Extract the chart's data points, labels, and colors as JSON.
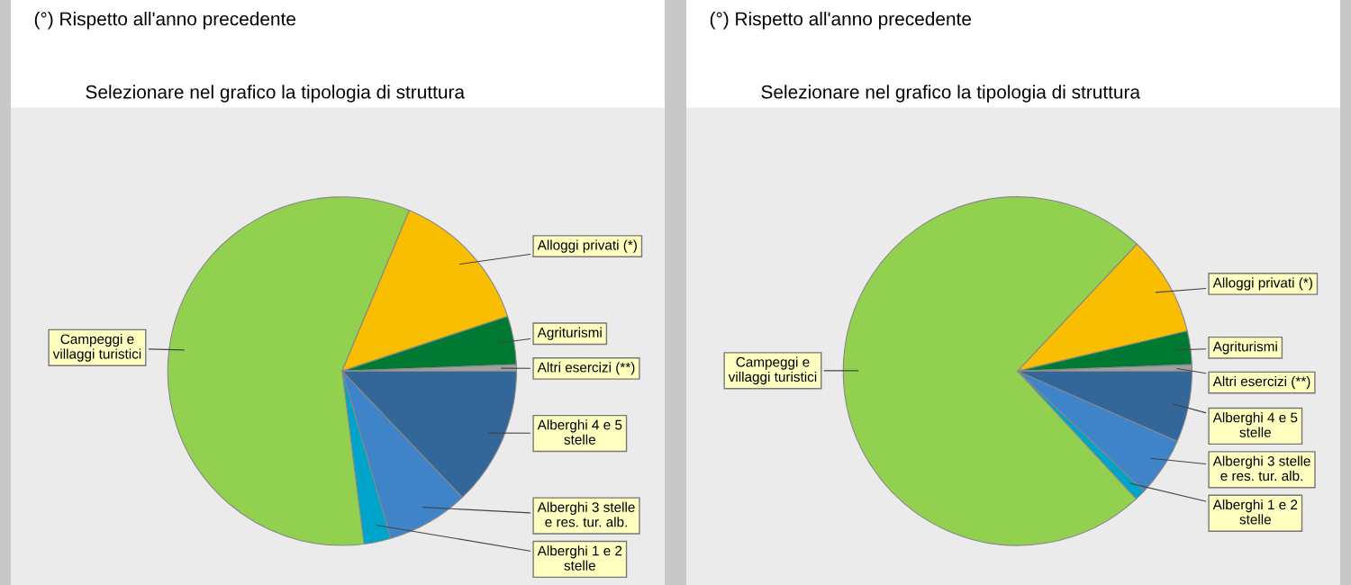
{
  "chart_data": [
    {
      "type": "pie",
      "title": "(°) Rispetto all'anno precedente",
      "subtitle": "Selezionare nel grafico la tipologia di struttura",
      "categories": [
        "Alberghi 4 e 5\nstelle",
        "Alberghi 3 stelle\ne res. tur. alb.",
        "Alberghi 1 e 2\nstelle",
        "Campeggi e\nvillaggi turistici",
        "Alloggi privati (*)",
        "Agriturismi",
        "Altri esercizi (**)"
      ],
      "values": [
        12.9,
        7.6,
        2.5,
        58.3,
        13.6,
        4.5,
        0.6
      ],
      "colors": [
        "#336699",
        "#3f83c9",
        "#00a3c9",
        "#92d050",
        "#f9be00",
        "#007a33",
        "#a0a0a0"
      ]
    },
    {
      "type": "pie",
      "title": "(°) Rispetto all'anno precedente",
      "subtitle": "Selezionare nel grafico la tipologia di struttura",
      "categories": [
        "Alberghi 4 e 5\nstelle",
        "Alberghi 3 stelle\ne res. tur. alb.",
        "Alberghi 1 e 2\nstelle",
        "Campeggi e\nvillaggi turistici",
        "Alloggi privati (*)",
        "Agriturismi",
        "Altri esercizi (**)"
      ],
      "values": [
        6.6,
        5.5,
        1.0,
        73.9,
        9.3,
        3.1,
        0.6
      ],
      "colors": [
        "#336699",
        "#3f83c9",
        "#00a3c9",
        "#92d050",
        "#f9be00",
        "#007a33",
        "#a0a0a0"
      ]
    }
  ]
}
